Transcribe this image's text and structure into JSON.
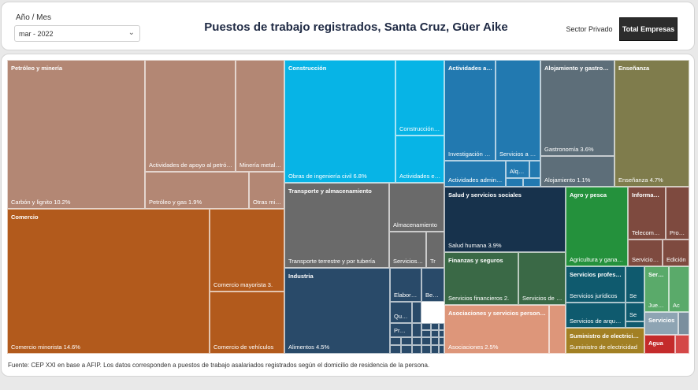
{
  "filter": {
    "label": "Año / Mes",
    "value": "mar - 2022"
  },
  "title": "Puestos de trabajo registrados, Santa Cruz, Güer Aike",
  "toggle": {
    "sector_privado": "Sector Privado",
    "total_empresas": "Total Empresas",
    "selected": "Total Empresas"
  },
  "source": "Fuente: CEP XXI en base a AFIP. Los datos corresponden a puestos de trabajo asalariados registrados según el domicilio de residencia de la persona.",
  "colors": {
    "petroleo": "#b38774",
    "comercio": "#b25a1c",
    "construccion": "#07b4e6",
    "transporte": "#6a6a6a",
    "industria": "#294a69",
    "actividades_adm": "#2279b0",
    "alojamiento": "#5d6e79",
    "ensenanza": "#7f7c4c",
    "salud": "#17324c",
    "agro": "#24913c",
    "informacion": "#7e4a3f",
    "finanzas": "#3a6946",
    "asociaciones": "#dd967a",
    "servicios_prof": "#0f5a6e",
    "servicios_grn": "#5aaa6a",
    "servicios_otros": "#8ea4b3",
    "suministro": "#a28024",
    "agua": "#c42b2b"
  },
  "treemap": {
    "petroleo": {
      "header": "Petróleo y minería",
      "items": [
        "Carbón y lignito 10.2%",
        "Actividades de apoyo al petróleo",
        "Minería metalífera",
        "Petróleo y gas 1.9%",
        "Otras minas"
      ]
    },
    "comercio": {
      "header": "Comercio",
      "items": [
        "Comercio minorista 14.6%",
        "Comercio mayorista 3.",
        "Comercio de vehículos"
      ]
    },
    "construccion": {
      "header": "Construcción",
      "items": [
        "Obras de ingeniería civil 6.8%",
        "Construcción de edificios",
        "Actividades especializadas"
      ]
    },
    "transporte": {
      "header": "Transporte y almacenamiento",
      "items": [
        "Transporte terrestre y por tubería",
        "Almacenamiento",
        "Servicios de transporte",
        "Tr"
      ]
    },
    "industria": {
      "header": "Industria",
      "items": [
        "Alimentos 4.5%",
        "Elaboración",
        "Bebidas",
        "Químicos",
        "Productos"
      ]
    },
    "actividades_adm": {
      "header": "Actividades administrativas",
      "items": [
        "Investigación y seguridad",
        "Servicios a edificios",
        "Actividades administrativas",
        "Alquiler"
      ]
    },
    "alojamiento": {
      "header": "Alojamiento y gastronomía",
      "items": [
        "Gastronomía 3.6%",
        "Alojamiento 1.1%"
      ]
    },
    "ensenanza": {
      "header": "Enseñanza",
      "items": [
        "Enseñanza 4.7%"
      ]
    },
    "salud": {
      "header": "Salud y servicios sociales",
      "items": [
        "Salud humana 3.9%"
      ]
    },
    "agro": {
      "header": "Agro y pesca",
      "items": [
        "Agricultura y ganadería"
      ]
    },
    "informacion": {
      "header": "Información y comunicaciones",
      "items": [
        "Telecomunicaciones",
        "Programación",
        "Servicios de información",
        "Edición"
      ]
    },
    "finanzas": {
      "header": "Finanzas y seguros",
      "items": [
        "Servicios financieros 2.",
        "Servicios de seguros"
      ]
    },
    "asociaciones": {
      "header": "Asociaciones y servicios personales",
      "items": [
        "Asociaciones 2.5%"
      ]
    },
    "servicios_prof": {
      "header": "Servicios profesionales",
      "items": [
        "Servicios jurídicos",
        "Servicios de arquitectura",
        "Se",
        "Se"
      ]
    },
    "servicios_grn": {
      "header": "Servicios",
      "items": [
        "Juegos",
        "Ac"
      ]
    },
    "servicios_otros": {
      "header": "Servicios",
      "items": []
    },
    "suministro": {
      "header": "Suministro de electricidad",
      "items": [
        "Suministro de electricidad"
      ]
    },
    "agua": {
      "header": "Agua",
      "items": []
    }
  }
}
